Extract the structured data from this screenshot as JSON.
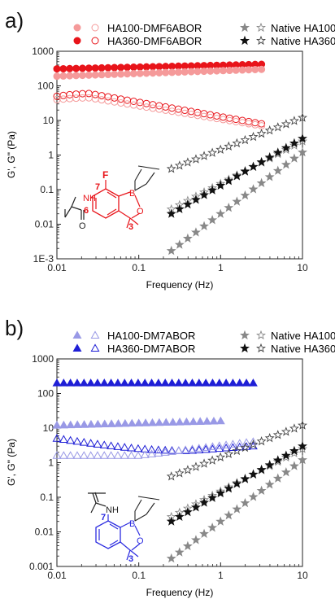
{
  "colors": {
    "ha100_dmf6abor": "#f59a9a",
    "ha360_dmf6abor": "#e8141a",
    "ha100_dm7abor": "#9999e6",
    "ha360_dm7abor": "#1f1fd6",
    "native_filled": "#888888",
    "native_filled_dark": "#111111",
    "native_open": "#444444",
    "struct_black": "#222222",
    "struct_red": "#e8141a",
    "struct_blue": "#2b2be0"
  },
  "icons": [
    "filled-circle",
    "open-circle",
    "filled-triangle",
    "open-triangle",
    "filled-star",
    "open-star"
  ],
  "chart_data": [
    {
      "type": "scatter",
      "panel_label": "a)",
      "xlabel": "Frequency (Hz)",
      "ylabel": "G', G\" (Pa)",
      "xlim": [
        0.01,
        10
      ],
      "ylim": [
        0.001,
        1000
      ],
      "x_scale": "log",
      "y_scale": "log",
      "x_ticks": [
        "0.01",
        "0.1",
        "1",
        "10"
      ],
      "y_ticks": [
        "1E-3",
        "0.01",
        "0.1",
        "1",
        "10",
        "100",
        "1000"
      ],
      "legend_position": "top",
      "legend": [
        {
          "label": "HA100-DMF6ABOR",
          "fill_marker": "circle",
          "fill_color": "#f59a9a",
          "open_color": "#f59a9a"
        },
        {
          "label": "HA360-DMF6ABOR",
          "fill_marker": "circle",
          "fill_color": "#e8141a",
          "open_color": "#e8141a"
        },
        {
          "label": "Native HA100",
          "fill_marker": "star",
          "fill_color": "#888888",
          "open_color": "#888888"
        },
        {
          "label": "Native HA360",
          "fill_marker": "star",
          "fill_color": "#111111",
          "open_color": "#444444"
        }
      ],
      "series": [
        {
          "marker": "circle",
          "filled": true,
          "color": "#e8141a",
          "x_range": [
            0.01,
            3.16
          ],
          "count": 33,
          "y_start": 310,
          "y_end": 420,
          "shape": "linear"
        },
        {
          "marker": "circle",
          "filled": true,
          "color": "#f59a9a",
          "x_range": [
            0.01,
            3.16
          ],
          "count": 33,
          "y_start": 190,
          "y_end": 300,
          "shape": "linear"
        },
        {
          "marker": "circle",
          "filled": false,
          "color": "#e8141a",
          "x_range": [
            0.01,
            3.16
          ],
          "count": 33,
          "y_start": 50,
          "y_end": 8,
          "y_peak": 60,
          "peak_x": 0.025,
          "shape": "hump"
        },
        {
          "marker": "circle",
          "filled": false,
          "color": "#f59a9a",
          "x_range": [
            0.01,
            3.16
          ],
          "count": 33,
          "y_start": 40,
          "y_end": 7,
          "y_peak": 45,
          "peak_x": 0.025,
          "shape": "hump"
        },
        {
          "marker": "star",
          "filled": false,
          "color": "#444444",
          "x_range": [
            0.25,
            10
          ],
          "count": 17,
          "y_start": 0.4,
          "y_end": 12,
          "shape": "linear"
        },
        {
          "marker": "star",
          "filled": false,
          "color": "#888888",
          "x_range": [
            0.25,
            10
          ],
          "count": 17,
          "y_start": 0.027,
          "y_end": 2.5,
          "shape": "linear"
        },
        {
          "marker": "star",
          "filled": true,
          "color": "#111111",
          "x_range": [
            0.25,
            10
          ],
          "count": 17,
          "y_start": 0.02,
          "y_end": 3,
          "shape": "linear"
        },
        {
          "marker": "star",
          "filled": true,
          "color": "#888888",
          "x_range": [
            0.25,
            10
          ],
          "count": 17,
          "y_start": 0.0017,
          "y_end": 1.2,
          "shape": "linear"
        }
      ],
      "structure": {
        "labels": [
          "F",
          "7",
          "N",
          "H",
          "6",
          "B",
          "O",
          "O",
          "O",
          "3"
        ]
      }
    },
    {
      "type": "scatter",
      "panel_label": "b)",
      "xlabel": "Frequency (Hz)",
      "ylabel": "G', G\" (Pa)",
      "xlim": [
        0.01,
        10
      ],
      "ylim": [
        0.001,
        1000
      ],
      "x_scale": "log",
      "y_scale": "log",
      "x_ticks": [
        "0.01",
        "0.1",
        "1",
        "10"
      ],
      "y_ticks": [
        "0.001",
        "0.01",
        "0.1",
        "1",
        "10",
        "100",
        "1000"
      ],
      "legend_position": "top",
      "legend": [
        {
          "label": "HA100-DM7ABOR",
          "fill_marker": "triangle",
          "fill_color": "#9999e6",
          "open_color": "#9999e6"
        },
        {
          "label": "HA360-DM7ABOR",
          "fill_marker": "triangle",
          "fill_color": "#1f1fd6",
          "open_color": "#1f1fd6"
        },
        {
          "label": "Native HA100",
          "fill_marker": "star",
          "fill_color": "#888888",
          "open_color": "#888888"
        },
        {
          "label": "Native HA360",
          "fill_marker": "star",
          "fill_color": "#111111",
          "open_color": "#444444"
        }
      ],
      "series": [
        {
          "marker": "triangle",
          "filled": true,
          "color": "#1f1fd6",
          "x_range": [
            0.01,
            2.5
          ],
          "count": 30,
          "y_start": 200,
          "y_end": 200,
          "shape": "linear"
        },
        {
          "marker": "triangle",
          "filled": true,
          "color": "#9999e6",
          "x_range": [
            0.01,
            1.0
          ],
          "count": 25,
          "y_start": 12,
          "y_end": 16,
          "shape": "linear"
        },
        {
          "marker": "triangle",
          "filled": false,
          "color": "#1f1fd6",
          "x_range": [
            0.01,
            2.5
          ],
          "count": 30,
          "y_start": 5,
          "y_end": 3,
          "y_peak": 2.2,
          "peak_x": 0.4,
          "shape": "hump"
        },
        {
          "marker": "triangle",
          "filled": false,
          "color": "#9999e6",
          "x_range": [
            0.01,
            2.5
          ],
          "count": 30,
          "y_start": 1.6,
          "y_end": 4,
          "y_peak": 1.6,
          "peak_x": 0.1,
          "shape": "hump"
        },
        {
          "marker": "star",
          "filled": false,
          "color": "#444444",
          "x_range": [
            0.25,
            10
          ],
          "count": 17,
          "y_start": 0.4,
          "y_end": 12,
          "shape": "linear"
        },
        {
          "marker": "star",
          "filled": false,
          "color": "#888888",
          "x_range": [
            0.25,
            10
          ],
          "count": 17,
          "y_start": 0.027,
          "y_end": 2.5,
          "shape": "linear"
        },
        {
          "marker": "star",
          "filled": true,
          "color": "#111111",
          "x_range": [
            0.25,
            10
          ],
          "count": 17,
          "y_start": 0.02,
          "y_end": 3,
          "shape": "linear"
        },
        {
          "marker": "star",
          "filled": true,
          "color": "#888888",
          "x_range": [
            0.25,
            10
          ],
          "count": 17,
          "y_start": 0.0017,
          "y_end": 1.2,
          "shape": "linear"
        }
      ],
      "structure": {
        "labels": [
          "7",
          "N",
          "H",
          "B",
          "O",
          "O",
          "O",
          "3"
        ]
      }
    }
  ]
}
